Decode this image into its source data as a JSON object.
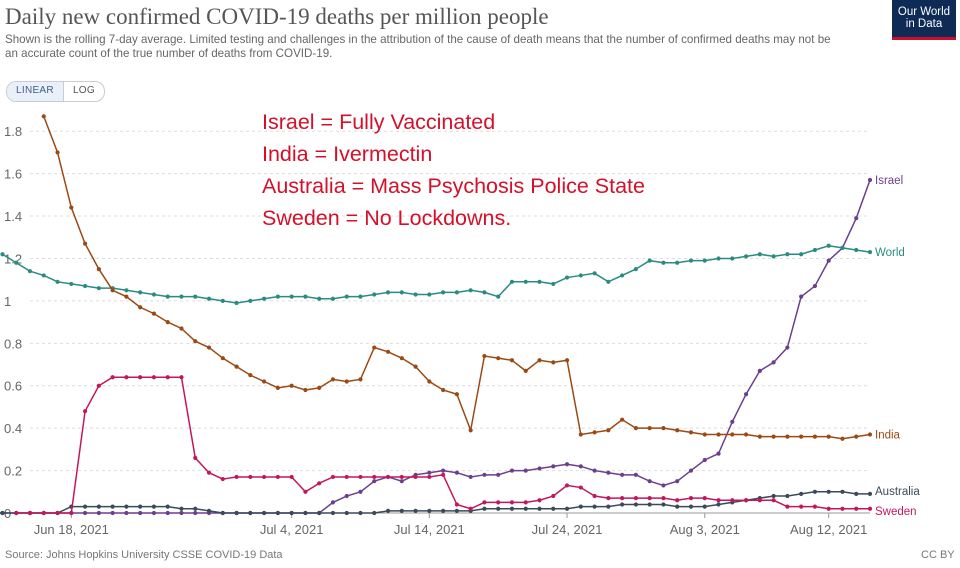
{
  "header": {
    "title": "Daily new confirmed COVID-19 deaths per million people",
    "subtitle": "Shown is the rolling 7-day average. Limited testing and challenges in the attribution of the cause of death means that the number of confirmed deaths may not be an accurate count of the true number of deaths from COVID-19.",
    "logo_line1": "Our World",
    "logo_line2": "in Data"
  },
  "controls": {
    "linear_label": "LINEAR",
    "log_label": "LOG"
  },
  "annotation": {
    "lines": [
      "Israel = Fully Vaccinated",
      "India = Ivermectin",
      "Australia = Mass Psychosis Police State",
      "Sweden = No Lockdowns."
    ],
    "color": "#d4102a"
  },
  "footer": {
    "source": "Source: Johns Hopkins University CSSE COVID-19 Data",
    "license": "CC BY"
  },
  "chart_data": {
    "type": "line",
    "x_start": "2021-06-15",
    "x_end": "2021-08-15",
    "x_ticks": [
      "Jun 18, 2021",
      "Jul 4, 2021",
      "Jul 14, 2021",
      "Jul 24, 2021",
      "Aug 3, 2021",
      "Aug 12, 2021"
    ],
    "y_ticks": [
      "0",
      "0.2",
      "0.4",
      "0.6",
      "0.8",
      "1",
      "1.2",
      "1.4",
      "1.6",
      "1.8"
    ],
    "ylim": [
      0,
      1.9
    ],
    "grid": "horizontal",
    "legend": "line-end labels",
    "series": [
      {
        "name": "Israel",
        "color": "#6b3f8e",
        "values": [
          0,
          0,
          0,
          0,
          0,
          0,
          0,
          0,
          0,
          0,
          0,
          0,
          0,
          0,
          0,
          0,
          0,
          0,
          0,
          0,
          0,
          0,
          0,
          0,
          0,
          0,
          0,
          0,
          0,
          0.05,
          0.08,
          0.1,
          0.15,
          0.17,
          0.15,
          0.18,
          0.19,
          0.2,
          0.19,
          0.17,
          0.18,
          0.18,
          0.2,
          0.2,
          0.21,
          0.22,
          0.23,
          0.22,
          0.2,
          0.19,
          0.18,
          0.18,
          0.15,
          0.13,
          0.15,
          0.2,
          0.25,
          0.28,
          0.43,
          0.56,
          0.67,
          0.71,
          0.78,
          1.02,
          1.07,
          1.19,
          1.25,
          1.39,
          1.57
        ]
      },
      {
        "name": "World",
        "color": "#2a8c80",
        "values": [
          1.22,
          1.18,
          1.14,
          1.12,
          1.09,
          1.08,
          1.07,
          1.06,
          1.06,
          1.05,
          1.04,
          1.03,
          1.02,
          1.02,
          1.02,
          1.01,
          1.0,
          0.99,
          1.0,
          1.01,
          1.02,
          1.02,
          1.02,
          1.01,
          1.01,
          1.02,
          1.02,
          1.03,
          1.04,
          1.04,
          1.03,
          1.03,
          1.04,
          1.04,
          1.05,
          1.04,
          1.02,
          1.09,
          1.09,
          1.09,
          1.08,
          1.11,
          1.12,
          1.13,
          1.09,
          1.12,
          1.15,
          1.19,
          1.18,
          1.18,
          1.19,
          1.19,
          1.2,
          1.2,
          1.21,
          1.22,
          1.21,
          1.22,
          1.22,
          1.24,
          1.26,
          1.25,
          1.24,
          1.23
        ]
      },
      {
        "name": "India",
        "color": "#9b4a14",
        "values": [
          1.87,
          1.7,
          1.44,
          1.27,
          1.15,
          1.05,
          1.02,
          0.97,
          0.94,
          0.9,
          0.87,
          0.81,
          0.78,
          0.73,
          0.69,
          0.65,
          0.62,
          0.59,
          0.6,
          0.58,
          0.59,
          0.63,
          0.62,
          0.63,
          0.78,
          0.76,
          0.73,
          0.69,
          0.62,
          0.58,
          0.56,
          0.39,
          0.74,
          0.73,
          0.72,
          0.67,
          0.72,
          0.71,
          0.72,
          0.37,
          0.38,
          0.39,
          0.44,
          0.4,
          0.4,
          0.4,
          0.39,
          0.38,
          0.37,
          0.37,
          0.37,
          0.37,
          0.36,
          0.36,
          0.36,
          0.36,
          0.36,
          0.36,
          0.35,
          0.36,
          0.37
        ]
      },
      {
        "name": "Australia",
        "color": "#3b4a5a",
        "values": [
          0,
          0,
          0,
          0,
          0,
          0,
          0,
          0.03,
          0.03,
          0.03,
          0.03,
          0.03,
          0.03,
          0.03,
          0.03,
          0.02,
          0.02,
          0.01,
          0,
          0,
          0,
          0,
          0,
          0,
          0,
          0,
          0,
          0,
          0,
          0,
          0.01,
          0.01,
          0.01,
          0.01,
          0.01,
          0.01,
          0.01,
          0.02,
          0.02,
          0.02,
          0.02,
          0.02,
          0.02,
          0.02,
          0.03,
          0.03,
          0.03,
          0.04,
          0.04,
          0.04,
          0.04,
          0.03,
          0.03,
          0.03,
          0.04,
          0.05,
          0.06,
          0.07,
          0.08,
          0.08,
          0.09,
          0.1,
          0.1,
          0.1,
          0.09,
          0.09
        ]
      },
      {
        "name": "Sweden",
        "color": "#c2185b",
        "values": [
          0,
          0,
          0,
          0,
          0,
          0.48,
          0.6,
          0.64,
          0.64,
          0.64,
          0.64,
          0.64,
          0.64,
          0.26,
          0.19,
          0.16,
          0.17,
          0.17,
          0.17,
          0.17,
          0.17,
          0.1,
          0.14,
          0.17,
          0.17,
          0.17,
          0.17,
          0.17,
          0.17,
          0.17,
          0.17,
          0.18,
          0.04,
          0.02,
          0.05,
          0.05,
          0.05,
          0.05,
          0.06,
          0.08,
          0.13,
          0.12,
          0.08,
          0.07,
          0.07,
          0.07,
          0.07,
          0.07,
          0.06,
          0.07,
          0.07,
          0.06,
          0.06,
          0.06,
          0.06,
          0.06,
          0.03,
          0.03,
          0.03,
          0.02,
          0.02,
          0.02,
          0.02
        ]
      }
    ]
  }
}
